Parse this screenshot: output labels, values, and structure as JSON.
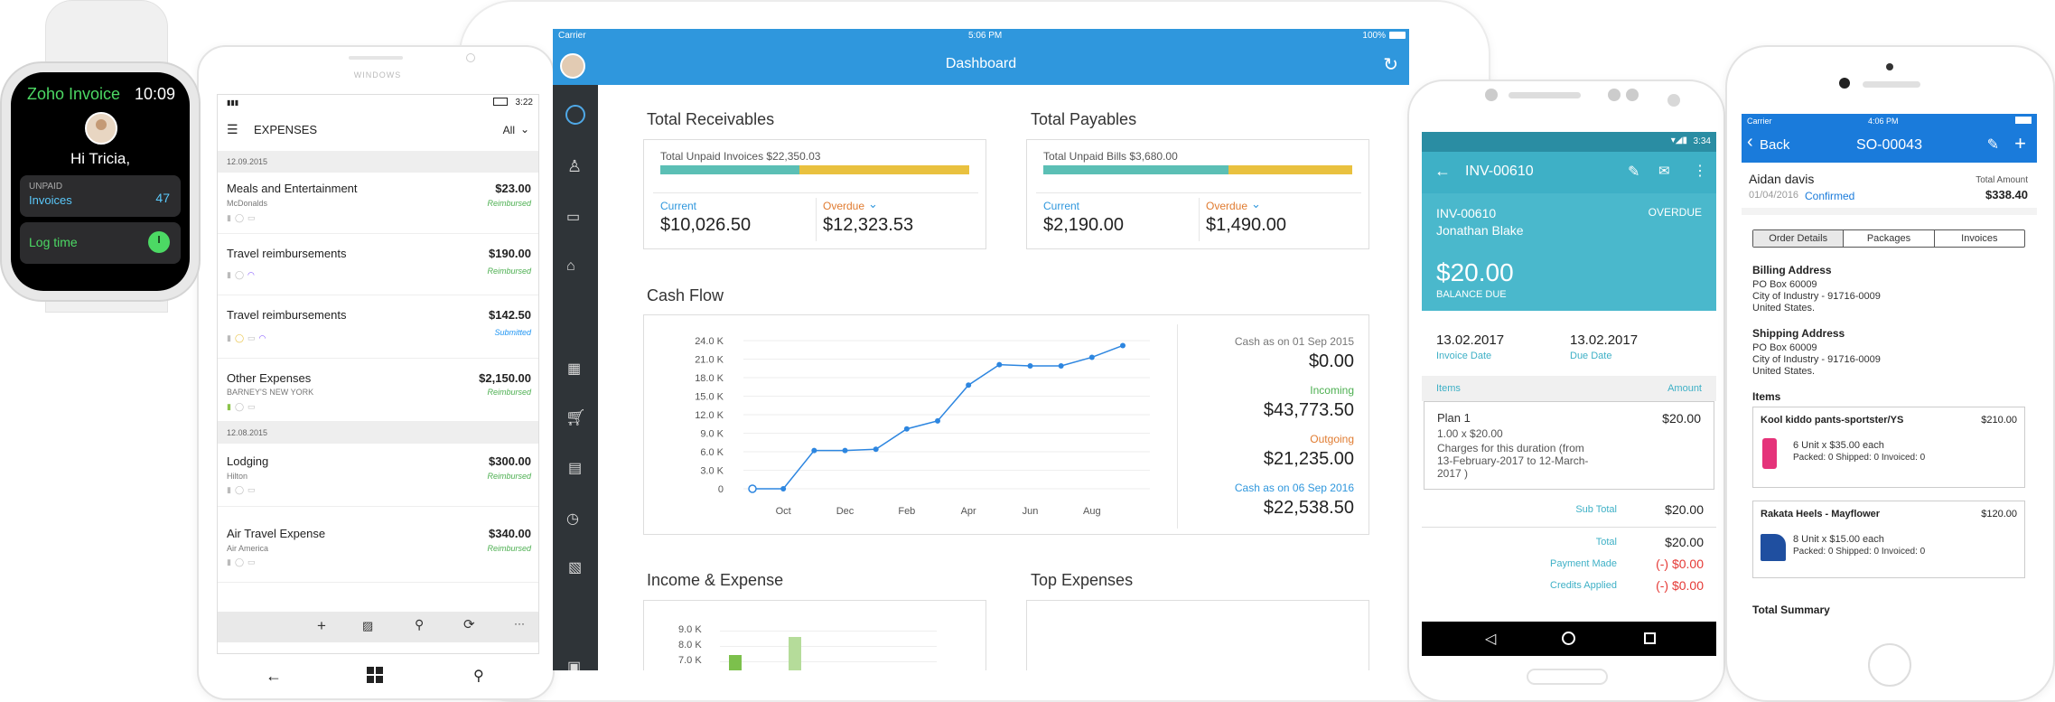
{
  "watch": {
    "app_name": "Zoho Invoice",
    "time": "10:09",
    "greeting": "Hi Tricia,",
    "unpaid_label": "UNPAID",
    "invoices_label": "Invoices",
    "unpaid_count": "47",
    "log_time_label": "Log time"
  },
  "windows_phone": {
    "brand": "WINDOWS",
    "status_time": "3:22",
    "title": "EXPENSES",
    "filter": "All",
    "groups": [
      {
        "date": "12.09.2015",
        "items": [
          {
            "name": "Meals and Entertainment",
            "amount": "$23.00",
            "sub": "McDonalds",
            "status": "Reimbursed"
          },
          {
            "name": "Travel reimbursements",
            "amount": "$190.00",
            "sub": "",
            "status": "Reimbursed"
          },
          {
            "name": "Travel reimbursements",
            "amount": "$142.50",
            "sub": "",
            "status": "Submitted"
          },
          {
            "name": "Other Expenses",
            "amount": "$2,150.00",
            "sub": "BARNEY'S NEW YORK",
            "status": "Reimbursed"
          }
        ]
      },
      {
        "date": "12.08.2015",
        "items": [
          {
            "name": "Lodging",
            "amount": "$300.00",
            "sub": "Hilton",
            "status": "Reimbursed"
          },
          {
            "name": "Air Travel Expense",
            "amount": "$340.00",
            "sub": "Air America",
            "status": "Reimbursed"
          }
        ]
      }
    ],
    "app_bar_more": "···"
  },
  "tablet": {
    "status": {
      "carrier": "Carrier",
      "time": "5:06 PM",
      "battery": "100%"
    },
    "title": "Dashboard",
    "receivables": {
      "heading": "Total Receivables",
      "total_label": "Total Unpaid Invoices $22,350.03",
      "current_label": "Current",
      "current_value": "$10,026.50",
      "overdue_label": "Overdue",
      "overdue_value": "$12,323.53",
      "current_fraction": 0.45
    },
    "payables": {
      "heading": "Total Payables",
      "total_label": "Total Unpaid Bills $3,680.00",
      "current_label": "Current",
      "current_value": "$2,190.00",
      "overdue_label": "Overdue",
      "overdue_value": "$1,490.00",
      "current_fraction": 0.6
    },
    "cash_flow": {
      "heading": "Cash Flow",
      "start_label": "Cash as on 01 Sep 2015",
      "start_value": "$0.00",
      "incoming_label": "Incoming",
      "incoming_value": "$43,773.50",
      "outgoing_label": "Outgoing",
      "outgoing_value": "$21,235.00",
      "end_label": "Cash as on 06 Sep 2016",
      "end_value": "$22,538.50"
    },
    "income_expense_heading": "Income & Expense",
    "top_expenses_heading": "Top Expenses",
    "income_expense_ticks": [
      "9.0 K",
      "8.0 K",
      "7.0 K"
    ]
  },
  "chart_data": [
    {
      "type": "line",
      "title": "Cash Flow",
      "y_ticks": [
        "24.0 K",
        "21.0 K",
        "18.0 K",
        "15.0 K",
        "12.0 K",
        "9.0 K",
        "6.0 K",
        "3.0 K",
        "0"
      ],
      "x_labels": [
        "Oct",
        "Dec",
        "Feb",
        "Apr",
        "Jun",
        "Aug"
      ],
      "ylim": [
        0,
        24000
      ],
      "series": [
        {
          "values": [
            0,
            0,
            6200,
            6200,
            6400,
            9700,
            11000,
            16800,
            20100,
            19900,
            19900,
            21300,
            23200
          ]
        }
      ]
    }
  ],
  "android": {
    "status_time": "3:34",
    "toolbar_title": "INV-00610",
    "invoice_no": "INV-00610",
    "overdue": "OVERDUE",
    "customer": "Jonathan  Blake",
    "balance": "$20.00",
    "balance_label": "BALANCE DUE",
    "invoice_date": "13.02.2017",
    "invoice_date_label": "Invoice Date",
    "due_date": "13.02.2017",
    "due_date_label": "Due Date",
    "items_label": "Items",
    "amount_label": "Amount",
    "item_name": "Plan 1",
    "item_qty": "1.00 x $20.00",
    "item_desc": "Charges for this duration (from 13-February-2017 to 12-March-2017 )",
    "item_amount": "$20.00",
    "subtotal_label": "Sub Total",
    "subtotal": "$20.00",
    "total_label": "Total",
    "total": "$20.00",
    "payment_label": "Payment Made",
    "payment": "(-) $0.00",
    "credits_label": "Credits Applied",
    "credits": "(-) $0.00"
  },
  "iphone": {
    "status": {
      "carrier": "Carrier",
      "time": "4:06 PM"
    },
    "back": "Back",
    "title": "SO-00043",
    "customer": "Aidan davis",
    "date": "01/04/2016",
    "status_text": "Confirmed",
    "total_label": "Total Amount",
    "total": "$338.40",
    "tabs": [
      "Order Details",
      "Packages",
      "Invoices"
    ],
    "billing_heading": "Billing Address",
    "billing": [
      "PO Box 60009",
      "City of Industry - 91716-0009",
      "United States."
    ],
    "shipping_heading": "Shipping Address",
    "shipping": [
      "PO Box 60009",
      "City of Industry - 91716-0009",
      "United States."
    ],
    "items_heading": "Items",
    "items": [
      {
        "name": "Kool kiddo pants-sportster/YS",
        "amount": "$210.00",
        "qty": "6 Unit x $35.00 each",
        "status": "Packed: 0 Shipped: 0 Invoiced: 0"
      },
      {
        "name": "Rakata Heels - Mayflower",
        "amount": "$120.00",
        "qty": "8 Unit x $15.00 each",
        "status": "Packed: 0 Shipped: 0 Invoiced: 0"
      }
    ],
    "summary_heading": "Total Summary"
  },
  "colors": {
    "tablet_header": "#2f97dd",
    "sidebar": "#2f3438",
    "android_primary": "#3eb0c6",
    "ios_blue": "#1a7bdb",
    "current_bar": "#5bbfb5",
    "overdue_bar": "#e9c13f",
    "line": "#2d86e0",
    "overdue_text": "#e07b30",
    "reimbursed": "#4caf50",
    "red": "#e53935"
  }
}
